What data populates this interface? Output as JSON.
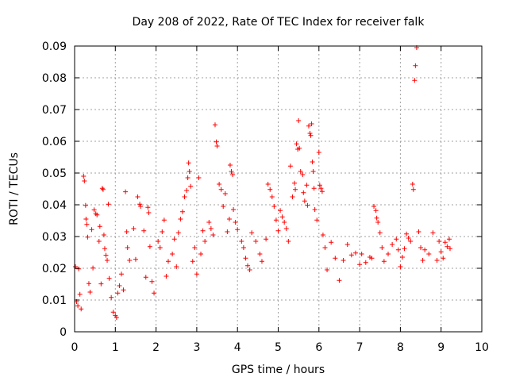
{
  "chart_data": {
    "type": "scatter",
    "title": "Day 208 of 2022, Rate Of TEC Index for receiver falk",
    "xlabel": "GPS time / hours",
    "ylabel": "ROTI / TECUs",
    "xlim": [
      0,
      10
    ],
    "ylim": [
      0,
      0.09
    ],
    "x_ticks": [
      "0",
      "1",
      "2",
      "3",
      "4",
      "5",
      "6",
      "7",
      "8",
      "9",
      "10"
    ],
    "y_ticks": [
      "0",
      "0.01",
      "0.02",
      "0.03",
      "0.04",
      "0.05",
      "0.06",
      "0.07",
      "0.08",
      "0.09"
    ],
    "grid": true,
    "marker": "+",
    "series_color": "#ff0000",
    "points": [
      [
        0.02,
        0.0205
      ],
      [
        0.05,
        0.0095
      ],
      [
        0.08,
        0.0082
      ],
      [
        0.1,
        0.0198
      ],
      [
        0.13,
        0.0118
      ],
      [
        0.16,
        0.0072
      ],
      [
        0.22,
        0.049
      ],
      [
        0.24,
        0.0475
      ],
      [
        0.27,
        0.0398
      ],
      [
        0.28,
        0.0355
      ],
      [
        0.3,
        0.0338
      ],
      [
        0.32,
        0.0298
      ],
      [
        0.35,
        0.0152
      ],
      [
        0.38,
        0.0125
      ],
      [
        0.42,
        0.0322
      ],
      [
        0.45,
        0.0201
      ],
      [
        0.48,
        0.0384
      ],
      [
        0.52,
        0.0372
      ],
      [
        0.55,
        0.0368
      ],
      [
        0.6,
        0.0285
      ],
      [
        0.62,
        0.0332
      ],
      [
        0.65,
        0.0151
      ],
      [
        0.68,
        0.0452
      ],
      [
        0.7,
        0.0448
      ],
      [
        0.72,
        0.0305
      ],
      [
        0.74,
        0.0262
      ],
      [
        0.77,
        0.0241
      ],
      [
        0.8,
        0.0225
      ],
      [
        0.83,
        0.0402
      ],
      [
        0.85,
        0.0168
      ],
      [
        0.9,
        0.0108
      ],
      [
        0.95,
        0.0062
      ],
      [
        1.0,
        0.0051
      ],
      [
        1.03,
        0.0045
      ],
      [
        1.06,
        0.0122
      ],
      [
        1.1,
        0.0145
      ],
      [
        1.15,
        0.0182
      ],
      [
        1.2,
        0.0132
      ],
      [
        1.25,
        0.0441
      ],
      [
        1.28,
        0.0315
      ],
      [
        1.3,
        0.0265
      ],
      [
        1.35,
        0.0225
      ],
      [
        1.45,
        0.0325
      ],
      [
        1.5,
        0.0228
      ],
      [
        1.55,
        0.0425
      ],
      [
        1.6,
        0.0402
      ],
      [
        1.62,
        0.0395
      ],
      [
        1.7,
        0.0318
      ],
      [
        1.75,
        0.0172
      ],
      [
        1.8,
        0.0392
      ],
      [
        1.82,
        0.0375
      ],
      [
        1.85,
        0.0268
      ],
      [
        1.9,
        0.0158
      ],
      [
        1.95,
        0.0122
      ],
      [
        2.05,
        0.0285
      ],
      [
        2.1,
        0.0265
      ],
      [
        2.15,
        0.0315
      ],
      [
        2.2,
        0.0352
      ],
      [
        2.25,
        0.0175
      ],
      [
        2.3,
        0.0222
      ],
      [
        2.4,
        0.0245
      ],
      [
        2.45,
        0.0292
      ],
      [
        2.5,
        0.0205
      ],
      [
        2.55,
        0.0312
      ],
      [
        2.6,
        0.0355
      ],
      [
        2.65,
        0.0378
      ],
      [
        2.7,
        0.0425
      ],
      [
        2.75,
        0.0445
      ],
      [
        2.78,
        0.0485
      ],
      [
        2.8,
        0.0532
      ],
      [
        2.82,
        0.0505
      ],
      [
        2.85,
        0.0458
      ],
      [
        2.9,
        0.0222
      ],
      [
        2.95,
        0.0265
      ],
      [
        3.0,
        0.0182
      ],
      [
        3.05,
        0.0485
      ],
      [
        3.1,
        0.0245
      ],
      [
        3.15,
        0.0318
      ],
      [
        3.2,
        0.0285
      ],
      [
        3.3,
        0.0345
      ],
      [
        3.35,
        0.0325
      ],
      [
        3.4,
        0.0305
      ],
      [
        3.45,
        0.0652
      ],
      [
        3.48,
        0.0598
      ],
      [
        3.5,
        0.0585
      ],
      [
        3.55,
        0.0465
      ],
      [
        3.6,
        0.0448
      ],
      [
        3.65,
        0.0395
      ],
      [
        3.7,
        0.0435
      ],
      [
        3.75,
        0.0315
      ],
      [
        3.8,
        0.0355
      ],
      [
        3.82,
        0.0525
      ],
      [
        3.85,
        0.0505
      ],
      [
        3.88,
        0.0495
      ],
      [
        3.9,
        0.0385
      ],
      [
        3.95,
        0.0345
      ],
      [
        4.0,
        0.0322
      ],
      [
        4.1,
        0.0285
      ],
      [
        4.15,
        0.0265
      ],
      [
        4.2,
        0.0232
      ],
      [
        4.25,
        0.0208
      ],
      [
        4.3,
        0.0195
      ],
      [
        4.35,
        0.0312
      ],
      [
        4.45,
        0.0285
      ],
      [
        4.55,
        0.0245
      ],
      [
        4.6,
        0.0222
      ],
      [
        4.7,
        0.0292
      ],
      [
        4.75,
        0.0465
      ],
      [
        4.8,
        0.0448
      ],
      [
        4.85,
        0.0425
      ],
      [
        4.9,
        0.0395
      ],
      [
        4.95,
        0.0352
      ],
      [
        5.0,
        0.0318
      ],
      [
        5.05,
        0.0382
      ],
      [
        5.1,
        0.0362
      ],
      [
        5.15,
        0.0345
      ],
      [
        5.2,
        0.0325
      ],
      [
        5.25,
        0.0285
      ],
      [
        5.3,
        0.0522
      ],
      [
        5.35,
        0.0425
      ],
      [
        5.4,
        0.0468
      ],
      [
        5.42,
        0.0448
      ],
      [
        5.45,
        0.0592
      ],
      [
        5.48,
        0.0575
      ],
      [
        5.5,
        0.0665
      ],
      [
        5.52,
        0.0578
      ],
      [
        5.55,
        0.0505
      ],
      [
        5.6,
        0.0495
      ],
      [
        5.62,
        0.0438
      ],
      [
        5.65,
        0.0412
      ],
      [
        5.7,
        0.0462
      ],
      [
        5.72,
        0.0398
      ],
      [
        5.75,
        0.0648
      ],
      [
        5.78,
        0.0625
      ],
      [
        5.8,
        0.0618
      ],
      [
        5.82,
        0.0655
      ],
      [
        5.84,
        0.0535
      ],
      [
        5.86,
        0.0505
      ],
      [
        5.88,
        0.0452
      ],
      [
        5.9,
        0.0385
      ],
      [
        5.95,
        0.0352
      ],
      [
        6.0,
        0.0565
      ],
      [
        6.02,
        0.0462
      ],
      [
        6.05,
        0.0452
      ],
      [
        6.08,
        0.0442
      ],
      [
        6.1,
        0.0305
      ],
      [
        6.15,
        0.0265
      ],
      [
        6.2,
        0.0195
      ],
      [
        6.3,
        0.0282
      ],
      [
        6.4,
        0.0232
      ],
      [
        6.5,
        0.0162
      ],
      [
        6.6,
        0.0225
      ],
      [
        6.7,
        0.0275
      ],
      [
        6.8,
        0.0242
      ],
      [
        6.9,
        0.0248
      ],
      [
        7.0,
        0.0212
      ],
      [
        7.05,
        0.0245
      ],
      [
        7.15,
        0.0218
      ],
      [
        7.25,
        0.0235
      ],
      [
        7.3,
        0.0232
      ],
      [
        7.35,
        0.0395
      ],
      [
        7.4,
        0.0382
      ],
      [
        7.42,
        0.0358
      ],
      [
        7.45,
        0.0345
      ],
      [
        7.5,
        0.0312
      ],
      [
        7.55,
        0.0265
      ],
      [
        7.6,
        0.0222
      ],
      [
        7.7,
        0.0245
      ],
      [
        7.8,
        0.0275
      ],
      [
        7.9,
        0.0292
      ],
      [
        7.95,
        0.0258
      ],
      [
        8.0,
        0.0205
      ],
      [
        8.05,
        0.0235
      ],
      [
        8.1,
        0.0262
      ],
      [
        8.15,
        0.0308
      ],
      [
        8.2,
        0.0295
      ],
      [
        8.25,
        0.0285
      ],
      [
        8.3,
        0.0465
      ],
      [
        8.32,
        0.0448
      ],
      [
        8.35,
        0.0792
      ],
      [
        8.37,
        0.0838
      ],
      [
        8.4,
        0.0895
      ],
      [
        8.45,
        0.0315
      ],
      [
        8.5,
        0.0265
      ],
      [
        8.55,
        0.0225
      ],
      [
        8.6,
        0.0258
      ],
      [
        8.7,
        0.0245
      ],
      [
        8.8,
        0.0312
      ],
      [
        8.9,
        0.0225
      ],
      [
        8.95,
        0.0285
      ],
      [
        9.0,
        0.0252
      ],
      [
        9.05,
        0.0232
      ],
      [
        9.1,
        0.0282
      ],
      [
        9.15,
        0.0268
      ],
      [
        9.2,
        0.0292
      ],
      [
        9.22,
        0.0262
      ]
    ]
  }
}
